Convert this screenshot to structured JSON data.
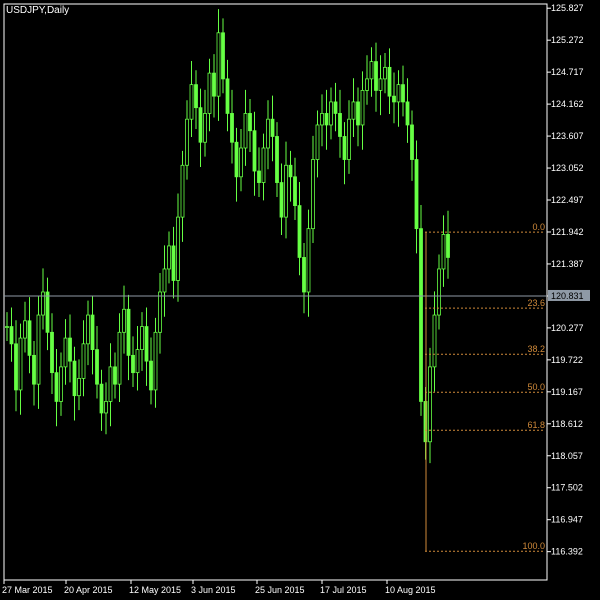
{
  "window": {
    "title": "USDJPY,Daily"
  },
  "colors": {
    "background": "#000000",
    "axis": "#ffffff",
    "candle": "#66ff44",
    "bid_line": "#8f9aa6",
    "fib": "#d08a3a",
    "price_box_bg": "#8f9aa6"
  },
  "chart_data": {
    "type": "candlestick",
    "title": "USDJPY,Daily",
    "xlabel": "",
    "ylabel": "",
    "ylim": [
      115.9,
      125.9
    ],
    "y_ticks": [
      "125.827",
      "125.272",
      "124.717",
      "124.162",
      "123.607",
      "123.052",
      "122.497",
      "121.942",
      "121.387",
      "120.831",
      "120.277",
      "119.722",
      "119.167",
      "118.612",
      "118.057",
      "117.502",
      "116.947",
      "116.392"
    ],
    "x_ticks": [
      "27 Mar 2015",
      "20 Apr 2015",
      "12 May 2015",
      "3 Jun 2015",
      "25 Jun 2015",
      "17 Jul 2015",
      "10 Aug 2015"
    ],
    "current_price": "120.831",
    "fibonacci": {
      "levels": [
        {
          "label": "0.0",
          "price": 121.94
        },
        {
          "label": "23.6",
          "price": 120.62
        },
        {
          "label": "38.2",
          "price": 119.82
        },
        {
          "label": "50.0",
          "price": 119.16
        },
        {
          "label": "61.8",
          "price": 118.5
        },
        {
          "label": "100.0",
          "price": 116.4
        }
      ]
    },
    "series": [
      {
        "closes": [
          120.3,
          120.0,
          119.2,
          120.1,
          120.4,
          119.8,
          119.3,
          120.5,
          120.9,
          120.2,
          119.5,
          119.0,
          119.6,
          120.1,
          119.7,
          119.1,
          119.4,
          120.0,
          120.5,
          119.9,
          119.3,
          118.8,
          119.0,
          119.6,
          119.3,
          120.2,
          120.6,
          119.8,
          119.5,
          119.9,
          120.3,
          119.7,
          119.2,
          120.2,
          120.9,
          121.3,
          121.7,
          121.1,
          122.2,
          123.1,
          123.9,
          124.5,
          124.1,
          123.5,
          124.0,
          124.7,
          124.3,
          125.4,
          124.6,
          124.0,
          123.5,
          122.9,
          123.4,
          124.0,
          123.7,
          123.0,
          122.8,
          123.4,
          123.9,
          123.6,
          122.8,
          122.2,
          123.1,
          122.9,
          122.4,
          121.5,
          120.9,
          122.0,
          123.2,
          123.8,
          124.0,
          123.8,
          124.2,
          124.0,
          123.6,
          123.2,
          123.9,
          124.2,
          123.8,
          124.4,
          124.6,
          124.9,
          124.4,
          124.6,
          124.8,
          124.3,
          124.2,
          124.5,
          124.2,
          123.8,
          123.2,
          122.0,
          119.0,
          118.3,
          119.6,
          120.5,
          121.3,
          121.9,
          121.5
        ]
      }
    ]
  }
}
